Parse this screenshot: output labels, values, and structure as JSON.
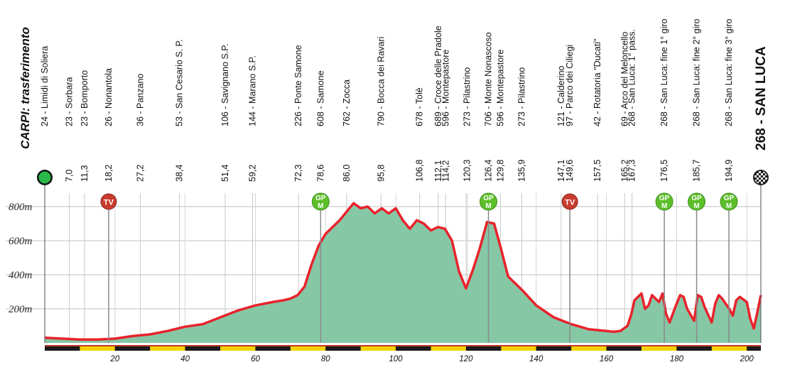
{
  "chart_data": {
    "type": "area",
    "title": "",
    "xlabel": "",
    "ylabel": "",
    "xlim": [
      0,
      204
    ],
    "ylim": [
      0,
      900
    ],
    "y_ticks": [
      200,
      400,
      600,
      800
    ],
    "y_tick_labels": [
      "200m",
      "400m",
      "600m",
      "800m"
    ],
    "x_ticks": [
      20,
      40,
      60,
      80,
      100,
      120,
      140,
      160,
      180,
      200
    ],
    "x_tick_labels": [
      "20",
      "40",
      "60",
      "80",
      "100",
      "120",
      "140",
      "160",
      "180",
      "200"
    ],
    "start": {
      "label": "CARPI: trasferimento",
      "km": 0
    },
    "finish": {
      "label": "268 - SAN LUCA",
      "km": 204
    },
    "waypoints": [
      {
        "km": 0.0,
        "km_label": "",
        "label": "24 - Limidi di Soliera"
      },
      {
        "km": 7.0,
        "km_label": "7,0",
        "label": "23 - Sorbara"
      },
      {
        "km": 11.3,
        "km_label": "11,3",
        "label": "23 - Bomporto"
      },
      {
        "km": 18.2,
        "km_label": "18,2",
        "label": "26 - Nonantola"
      },
      {
        "km": 27.2,
        "km_label": "27,2",
        "label": "36 - Panzano"
      },
      {
        "km": 38.4,
        "km_label": "38,4",
        "label": "53 - San Cesario S. P."
      },
      {
        "km": 51.4,
        "km_label": "51,4",
        "label": "106 - Savignano S.P."
      },
      {
        "km": 59.2,
        "km_label": "59,2",
        "label": "144 - Marano S.P."
      },
      {
        "km": 72.3,
        "km_label": "72,3",
        "label": "226 - Ponte Samone"
      },
      {
        "km": 78.6,
        "km_label": "78,6",
        "label": "608 - Samone"
      },
      {
        "km": 86.0,
        "km_label": "86,0",
        "label": "762 - Zocca"
      },
      {
        "km": 95.8,
        "km_label": "95,8",
        "label": "790 - Bocca dei Ravari"
      },
      {
        "km": 106.8,
        "km_label": "106,8",
        "label": "678 - Tolè"
      },
      {
        "km": 112.1,
        "km_label": "112,1",
        "label": "689 - Croce delle Pradole"
      },
      {
        "km": 114.2,
        "km_label": "114,2",
        "label": "596 - Montepastore"
      },
      {
        "km": 120.3,
        "km_label": "120,3",
        "label": "273 - Pilastrino"
      },
      {
        "km": 126.4,
        "km_label": "126,4",
        "label": "706 - Monte Nonascoso"
      },
      {
        "km": 129.8,
        "km_label": "129,8",
        "label": "596 - Montepastore"
      },
      {
        "km": 135.9,
        "km_label": "135,9",
        "label": "273 - Pilastrino"
      },
      {
        "km": 147.1,
        "km_label": "147,1",
        "label": "121 - Calderino"
      },
      {
        "km": 149.6,
        "km_label": "149,6",
        "label": "97 - Parco dei Ciliegi"
      },
      {
        "km": 157.5,
        "km_label": "157,5",
        "label": "42 - Rotatoria \"Ducati\""
      },
      {
        "km": 165.2,
        "km_label": "165,2",
        "label": "69 - Arco del Meloncello"
      },
      {
        "km": 167.3,
        "km_label": "167,3",
        "label": "268 - San Luca: 1° pass."
      },
      {
        "km": 176.5,
        "km_label": "176,5",
        "label": "268 - San Luca: fine 1° giro"
      },
      {
        "km": 185.7,
        "km_label": "185,7",
        "label": "268 - San Luca: fine 2° giro"
      },
      {
        "km": 194.9,
        "km_label": "194,9",
        "label": "268 - San Luca: fine 3° giro"
      }
    ],
    "markers": [
      {
        "type": "TV",
        "km": 18.2
      },
      {
        "type": "GPM",
        "label_top": "GP",
        "label_bottom": "M",
        "km": 78.6
      },
      {
        "type": "GPM",
        "label_top": "GP",
        "label_bottom": "M",
        "km": 126.4
      },
      {
        "type": "TV",
        "km": 149.6
      },
      {
        "type": "GPM",
        "label_top": "GP",
        "label_bottom": "M",
        "km": 176.5
      },
      {
        "type": "GPM",
        "label_top": "GP",
        "label_bottom": "M",
        "km": 185.7
      },
      {
        "type": "GPM",
        "label_top": "GP",
        "label_bottom": "M",
        "km": 194.9
      }
    ],
    "series": [
      {
        "x": [
          0,
          5,
          10,
          15,
          20,
          25,
          30,
          35,
          40,
          45,
          50,
          55,
          60,
          65,
          68,
          70,
          72,
          74,
          76,
          78,
          80,
          82,
          84,
          86,
          88,
          90,
          92,
          94,
          96,
          98,
          100,
          102,
          104,
          106,
          108,
          110,
          112,
          114,
          116,
          118,
          120,
          122,
          124,
          126,
          128,
          130,
          132,
          134,
          136,
          140,
          145,
          150,
          155,
          160,
          162,
          164,
          166,
          167,
          168,
          170,
          171,
          172,
          173,
          175,
          176,
          177,
          178,
          180,
          181,
          182,
          183,
          185,
          186,
          187,
          188,
          190,
          191,
          192,
          193,
          195,
          196,
          197,
          198,
          200,
          201,
          202,
          203,
          204
        ],
        "y": [
          30,
          25,
          20,
          20,
          25,
          40,
          50,
          70,
          95,
          110,
          150,
          190,
          220,
          240,
          250,
          260,
          280,
          330,
          460,
          570,
          640,
          680,
          720,
          770,
          820,
          790,
          800,
          760,
          790,
          760,
          790,
          720,
          670,
          720,
          700,
          660,
          680,
          670,
          600,
          420,
          320,
          430,
          560,
          710,
          700,
          550,
          390,
          350,
          310,
          220,
          150,
          110,
          80,
          70,
          65,
          70,
          100,
          160,
          250,
          290,
          200,
          220,
          280,
          240,
          290,
          170,
          120,
          230,
          280,
          270,
          200,
          130,
          280,
          270,
          210,
          120,
          230,
          280,
          260,
          200,
          160,
          250,
          270,
          240,
          140,
          85,
          180,
          280
        ]
      }
    ],
    "colors": {
      "area": "#86c7a6",
      "line": "#e8232c",
      "grid": "#bfbfbf",
      "gpm": "#5cbf2a",
      "tv": "#c83c2f",
      "start": "#2ab84a",
      "km_bar_dark": "#1a1a1a",
      "km_bar_light": "#f3d200",
      "km_bar_stripe": "#c0392b"
    }
  }
}
